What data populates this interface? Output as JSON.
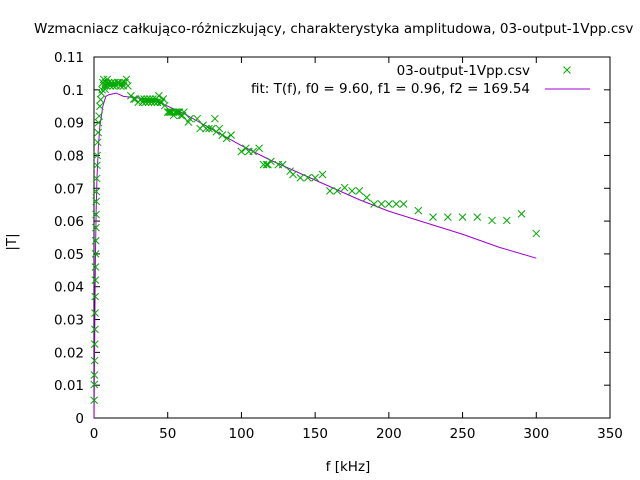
{
  "chart_data": {
    "type": "scatter",
    "title": "Wzmacniacz całkująco-różniczkujący, charakterystyka amplitudowa, 03-output-1Vpp.csv",
    "xlabel": "f [kHz]",
    "ylabel": "|T|",
    "xlim": [
      0,
      350
    ],
    "ylim": [
      0,
      0.11
    ],
    "x_ticks": [
      0,
      50,
      100,
      150,
      200,
      250,
      300,
      350
    ],
    "y_ticks": [
      0,
      0.01,
      0.02,
      0.03,
      0.04,
      0.05,
      0.06,
      0.07,
      0.08,
      0.09,
      0.1,
      0.11
    ],
    "x_tick_labels": [
      "0",
      "50",
      "100",
      "150",
      "200",
      "250",
      "300",
      "350"
    ],
    "y_tick_labels": [
      "0",
      "0.01",
      "0.02",
      "0.03",
      "0.04",
      "0.05",
      "0.06",
      "0.07",
      "0.08",
      "0.09",
      "0.1",
      "0.11"
    ],
    "grid": false,
    "legend_position": "top-right",
    "series": [
      {
        "name": "03-output-1Vpp.csv",
        "kind": "points",
        "color": "#00aa00",
        "marker": "x",
        "points": [
          [
            0.1,
            0.0054
          ],
          [
            0.2,
            0.0102
          ],
          [
            0.3,
            0.0131
          ],
          [
            0.4,
            0.0175
          ],
          [
            0.5,
            0.0225
          ],
          [
            0.6,
            0.027
          ],
          [
            0.7,
            0.032
          ],
          [
            0.8,
            0.037
          ],
          [
            0.9,
            0.042
          ],
          [
            1.0,
            0.046
          ],
          [
            1.1,
            0.05
          ],
          [
            1.2,
            0.054
          ],
          [
            1.3,
            0.058
          ],
          [
            1.4,
            0.062
          ],
          [
            1.5,
            0.066
          ],
          [
            1.6,
            0.069
          ],
          [
            1.8,
            0.073
          ],
          [
            2.0,
            0.077
          ],
          [
            2.2,
            0.08
          ],
          [
            2.5,
            0.084
          ],
          [
            2.8,
            0.087
          ],
          [
            3.0,
            0.09
          ],
          [
            3.5,
            0.092
          ],
          [
            4.0,
            0.095
          ],
          [
            4.5,
            0.097
          ],
          [
            5.0,
            0.099
          ],
          [
            5.5,
            0.1
          ],
          [
            6.0,
            0.1022
          ],
          [
            6.5,
            0.1032
          ],
          [
            7.0,
            0.1012
          ],
          [
            7.5,
            0.1002
          ],
          [
            8,
            0.1022
          ],
          [
            8.5,
            0.1012
          ],
          [
            9,
            0.1032
          ],
          [
            10,
            0.1022
          ],
          [
            11,
            0.1012
          ],
          [
            12,
            0.1022
          ],
          [
            13,
            0.1012
          ],
          [
            14,
            0.1022
          ],
          [
            15,
            0.1012
          ],
          [
            16,
            0.1022
          ],
          [
            17,
            0.1022
          ],
          [
            18,
            0.1012
          ],
          [
            19,
            0.1022
          ],
          [
            20,
            0.1012
          ],
          [
            21,
            0.1022
          ],
          [
            22,
            0.1032
          ],
          [
            23,
            0.1012
          ],
          [
            25,
            0.0982
          ],
          [
            27,
            0.0972
          ],
          [
            28,
            0.0972
          ],
          [
            30,
            0.0962
          ],
          [
            32,
            0.0972
          ],
          [
            33,
            0.0962
          ],
          [
            34,
            0.0972
          ],
          [
            35,
            0.0962
          ],
          [
            36,
            0.0972
          ],
          [
            37,
            0.0962
          ],
          [
            38,
            0.0972
          ],
          [
            39,
            0.0962
          ],
          [
            40,
            0.0972
          ],
          [
            41,
            0.0962
          ],
          [
            42,
            0.0972
          ],
          [
            43,
            0.0962
          ],
          [
            44,
            0.0982
          ],
          [
            45,
            0.0962
          ],
          [
            46,
            0.0962
          ],
          [
            47,
            0.0972
          ],
          [
            48,
            0.0952
          ],
          [
            50,
            0.0932
          ],
          [
            51,
            0.0932
          ],
          [
            52,
            0.0932
          ],
          [
            53,
            0.0932
          ],
          [
            54,
            0.0922
          ],
          [
            55,
            0.0932
          ],
          [
            56,
            0.0932
          ],
          [
            57,
            0.0932
          ],
          [
            58,
            0.0932
          ],
          [
            59,
            0.0922
          ],
          [
            60,
            0.0922
          ],
          [
            61,
            0.0932
          ],
          [
            64,
            0.0902
          ],
          [
            65,
            0.0912
          ],
          [
            70,
            0.0912
          ],
          [
            72,
            0.0882
          ],
          [
            74,
            0.0892
          ],
          [
            76,
            0.0882
          ],
          [
            78,
            0.0882
          ],
          [
            80,
            0.0882
          ],
          [
            82,
            0.0912
          ],
          [
            83,
            0.0872
          ],
          [
            85,
            0.0882
          ],
          [
            87,
            0.0862
          ],
          [
            90,
            0.0852
          ],
          [
            93,
            0.0862
          ],
          [
            100,
            0.0812
          ],
          [
            103,
            0.0822
          ],
          [
            105,
            0.0812
          ],
          [
            108,
            0.0812
          ],
          [
            112,
            0.0822
          ],
          [
            115,
            0.0772
          ],
          [
            117,
            0.0772
          ],
          [
            118,
            0.0772
          ],
          [
            120,
            0.0782
          ],
          [
            125,
            0.0772
          ],
          [
            128,
            0.0772
          ],
          [
            133,
            0.0752
          ],
          [
            135,
            0.0742
          ],
          [
            140,
            0.0732
          ],
          [
            145,
            0.0732
          ],
          [
            150,
            0.0732
          ],
          [
            155,
            0.0742
          ],
          [
            160,
            0.0692
          ],
          [
            165,
            0.0692
          ],
          [
            170,
            0.0702
          ],
          [
            175,
            0.0692
          ],
          [
            180,
            0.0692
          ],
          [
            185,
            0.0672
          ],
          [
            190,
            0.0652
          ],
          [
            195,
            0.0652
          ],
          [
            200,
            0.0652
          ],
          [
            205,
            0.0652
          ],
          [
            210,
            0.0652
          ],
          [
            220,
            0.0632
          ],
          [
            230,
            0.0612
          ],
          [
            240,
            0.0612
          ],
          [
            250,
            0.0612
          ],
          [
            260,
            0.0612
          ],
          [
            270,
            0.0602
          ],
          [
            280,
            0.0602
          ],
          [
            290,
            0.0622
          ],
          [
            300,
            0.0562
          ]
        ]
      },
      {
        "name": "fit: T(f), f0 = 9.60, f1 = 0.96, f2 = 169.54",
        "kind": "line",
        "color": "#a000d0",
        "params": {
          "f0": 9.6,
          "f1": 0.96,
          "f2": 169.54
        },
        "points": [
          [
            0.05,
            0.0
          ],
          [
            0.3,
            0.016
          ],
          [
            0.5,
            0.026
          ],
          [
            0.75,
            0.039
          ],
          [
            1.0,
            0.05
          ],
          [
            1.5,
            0.064
          ],
          [
            2.0,
            0.073
          ],
          [
            3.0,
            0.083
          ],
          [
            4.0,
            0.089
          ],
          [
            6.0,
            0.095
          ],
          [
            8.0,
            0.098
          ],
          [
            10,
            0.0985
          ],
          [
            15,
            0.099
          ],
          [
            20,
            0.098
          ],
          [
            30,
            0.0975
          ],
          [
            40,
            0.097
          ],
          [
            50,
            0.095
          ],
          [
            60,
            0.093
          ],
          [
            70,
            0.0905
          ],
          [
            80,
            0.088
          ],
          [
            90,
            0.0855
          ],
          [
            100,
            0.083
          ],
          [
            120,
            0.0785
          ],
          [
            140,
            0.0745
          ],
          [
            160,
            0.0705
          ],
          [
            180,
            0.0665
          ],
          [
            200,
            0.063
          ],
          [
            225,
            0.0595
          ],
          [
            250,
            0.056
          ],
          [
            275,
            0.052
          ],
          [
            300,
            0.0487
          ]
        ]
      }
    ]
  }
}
